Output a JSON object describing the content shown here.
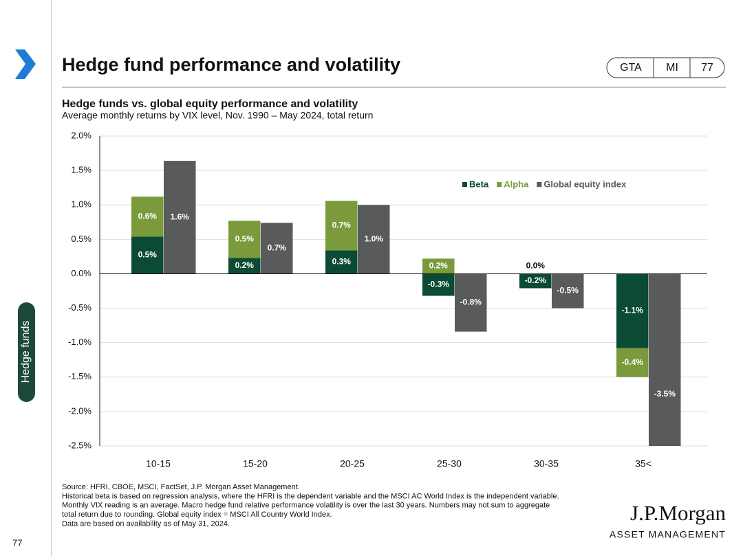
{
  "header": {
    "title": "Hedge fund performance and volatility",
    "tags": [
      "GTA",
      "MI",
      "77"
    ]
  },
  "sidebar": {
    "section": "Hedge funds",
    "page": "77"
  },
  "chart_data": {
    "type": "bar",
    "stacked": true,
    "title": "Hedge funds vs. global equity performance and volatility",
    "subtitle": "Average monthly returns by VIX level, Nov. 1990 – May 2024, total return",
    "categories": [
      "10-15",
      "15-20",
      "20-25",
      "25-30",
      "30-35",
      "35<"
    ],
    "series": [
      {
        "name": "Beta",
        "color": "#0b4a33",
        "stack": "hf",
        "values": [
          0.54,
          0.23,
          0.34,
          -0.32,
          -0.21,
          -1.08
        ],
        "value_labels": [
          "0.5%",
          "0.2%",
          "0.3%",
          "-0.3%",
          "-0.2%",
          "-1.1%"
        ]
      },
      {
        "name": "Alpha",
        "color": "#7a9a3c",
        "stack": "hf",
        "values": [
          0.58,
          0.54,
          0.72,
          0.22,
          0.0,
          -0.42
        ],
        "value_labels": [
          "0.6%",
          "0.5%",
          "0.7%",
          "0.2%",
          "0.0%",
          "-0.4%"
        ]
      },
      {
        "name": "Global equity index",
        "color": "#595a5c",
        "stack": "eq",
        "values": [
          1.64,
          0.74,
          1.0,
          -0.84,
          -0.5,
          -3.5
        ],
        "value_labels": [
          "1.6%",
          "0.7%",
          "1.0%",
          "-0.8%",
          "-0.5%",
          "-3.5%"
        ]
      }
    ],
    "ylim": [
      -2.5,
      2.0
    ],
    "yticks": [
      {
        "value": -2.5,
        "label": "-2.5%"
      },
      {
        "value": -2.0,
        "label": "-2.0%"
      },
      {
        "value": -1.5,
        "label": "-1.5%"
      },
      {
        "value": -1.0,
        "label": "-1.0%"
      },
      {
        "value": -0.5,
        "label": "-0.5%"
      },
      {
        "value": 0,
        "label": "0.0%"
      },
      {
        "value": 0.5,
        "label": "0.5%"
      },
      {
        "value": 1.0,
        "label": "1.0%"
      },
      {
        "value": 1.5,
        "label": "1.5%"
      },
      {
        "value": 2.0,
        "label": "2.0%"
      }
    ],
    "grid": true
  },
  "footnotes": [
    "Source: HFRI, CBOE, MSCI, FactSet, J.P. Morgan Asset Management.",
    "Historical beta is based on regression analysis, where the HFRI is the dependent variable and the MSCI AC World Index is the independent variable.",
    "Monthly VIX reading is an average. Macro hedge fund relative performance volatility is over the last 30 years. Numbers may not sum to aggregate",
    "total return due to rounding. Global equity index = MSCI All Country World Index.",
    "Data are based on availability as of May 31, 2024."
  ],
  "logo": {
    "name": "J.P.Morgan",
    "sub": "ASSET MANAGEMENT"
  }
}
